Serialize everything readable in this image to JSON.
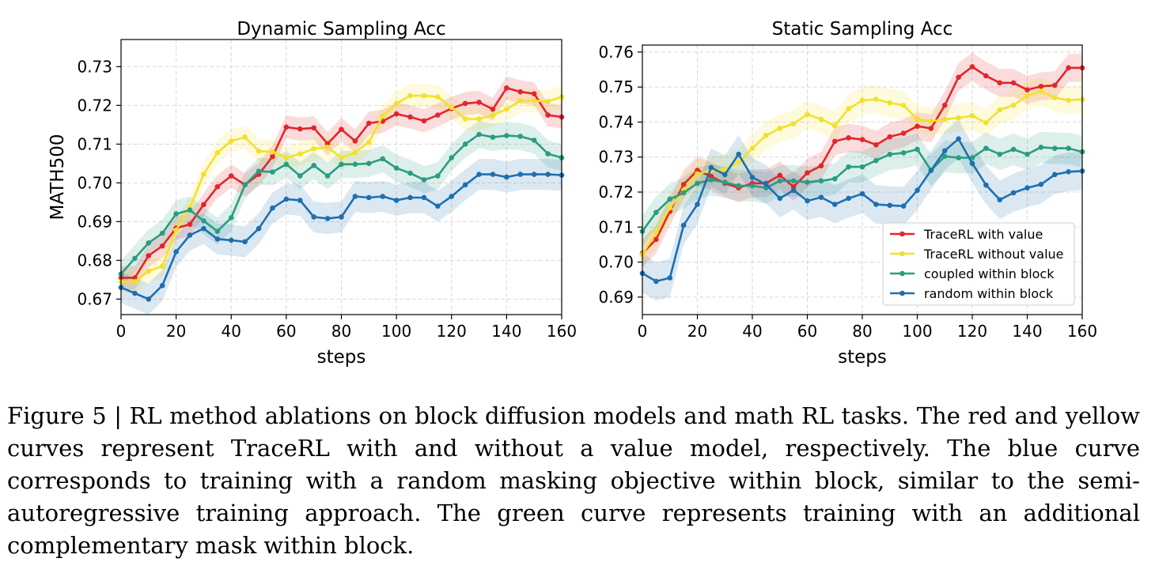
{
  "chart_data": [
    {
      "type": "line",
      "title": "Dynamic Sampling Acc",
      "xlabel": "steps",
      "ylabel": "MATH500",
      "xlim": [
        0,
        160
      ],
      "ylim": [
        0.666,
        0.737
      ],
      "xticks": [
        0,
        20,
        40,
        60,
        80,
        100,
        120,
        140,
        160
      ],
      "yticks": [
        0.67,
        0.68,
        0.69,
        0.7,
        0.71,
        0.72,
        0.73
      ],
      "ytick_labels": [
        "0.67",
        "0.68",
        "0.69",
        "0.70",
        "0.71",
        "0.72",
        "0.73"
      ],
      "grid": true,
      "x": [
        0,
        5,
        10,
        15,
        20,
        25,
        30,
        35,
        40,
        45,
        50,
        55,
        60,
        65,
        70,
        75,
        80,
        85,
        90,
        95,
        100,
        105,
        110,
        115,
        120,
        125,
        130,
        135,
        140,
        145,
        150,
        155,
        160
      ],
      "series": [
        {
          "name": "TraceRL with value",
          "color": "#e3262a",
          "band": 0.003,
          "values": [
            0.6755,
            0.6755,
            0.6812,
            0.6837,
            0.6883,
            0.6893,
            0.6944,
            0.699,
            0.7018,
            0.6995,
            0.7022,
            0.7068,
            0.7144,
            0.7139,
            0.7142,
            0.7101,
            0.7138,
            0.7108,
            0.7154,
            0.7159,
            0.7178,
            0.717,
            0.716,
            0.7175,
            0.7192,
            0.7205,
            0.7208,
            0.719,
            0.7245,
            0.7235,
            0.723,
            0.7175,
            0.717
          ]
        },
        {
          "name": "TraceRL without value",
          "color": "#f2e12c",
          "band": 0.003,
          "values": [
            0.6745,
            0.6745,
            0.6772,
            0.6785,
            0.6878,
            0.6935,
            0.7022,
            0.7078,
            0.7108,
            0.7118,
            0.7082,
            0.708,
            0.7065,
            0.7075,
            0.7088,
            0.7092,
            0.7065,
            0.7078,
            0.7105,
            0.7172,
            0.7205,
            0.7225,
            0.7225,
            0.7222,
            0.7195,
            0.7165,
            0.7165,
            0.7175,
            0.719,
            0.7212,
            0.7212,
            0.721,
            0.7222
          ]
        },
        {
          "name": "coupled within block",
          "color": "#2a9d80",
          "band": 0.0035,
          "values": [
            0.6765,
            0.6805,
            0.6845,
            0.687,
            0.692,
            0.693,
            0.6902,
            0.6875,
            0.691,
            0.6995,
            0.703,
            0.7028,
            0.7048,
            0.7018,
            0.7045,
            0.7018,
            0.7048,
            0.7048,
            0.705,
            0.7062,
            0.7038,
            0.7025,
            0.7008,
            0.7018,
            0.7065,
            0.71,
            0.7125,
            0.7118,
            0.7122,
            0.712,
            0.711,
            0.7075,
            0.7065
          ]
        },
        {
          "name": "random within block",
          "color": "#1e6fb0",
          "band": 0.004,
          "values": [
            0.673,
            0.6715,
            0.67,
            0.6735,
            0.6822,
            0.6865,
            0.6882,
            0.6855,
            0.6852,
            0.6848,
            0.6882,
            0.6935,
            0.6958,
            0.6955,
            0.6912,
            0.6908,
            0.6912,
            0.6965,
            0.6962,
            0.6965,
            0.6955,
            0.6962,
            0.6962,
            0.694,
            0.6965,
            0.6995,
            0.7022,
            0.7022,
            0.7015,
            0.7022,
            0.7022,
            0.7022,
            0.702
          ]
        }
      ]
    },
    {
      "type": "line",
      "title": "Static Sampling Acc",
      "xlabel": "steps",
      "ylabel": "",
      "xlim": [
        0,
        160
      ],
      "ylim": [
        0.685,
        0.762
      ],
      "xticks": [
        0,
        20,
        40,
        60,
        80,
        100,
        120,
        140,
        160
      ],
      "yticks": [
        0.69,
        0.7,
        0.71,
        0.72,
        0.73,
        0.74,
        0.75,
        0.76
      ],
      "ytick_labels": [
        "0.69",
        "0.70",
        "0.71",
        "0.72",
        "0.73",
        "0.74",
        "0.75",
        "0.76"
      ],
      "grid": true,
      "legend_position": "lower-right",
      "x": [
        0,
        5,
        10,
        15,
        20,
        25,
        30,
        35,
        40,
        45,
        50,
        55,
        60,
        65,
        70,
        75,
        80,
        85,
        90,
        95,
        100,
        105,
        110,
        115,
        120,
        125,
        130,
        135,
        140,
        145,
        150,
        155,
        160
      ],
      "series": [
        {
          "name": "TraceRL with value",
          "color": "#e3262a",
          "band": 0.004,
          "values": [
            0.7025,
            0.7065,
            0.7145,
            0.7222,
            0.7262,
            0.7245,
            0.7225,
            0.7212,
            0.7225,
            0.7225,
            0.7248,
            0.7215,
            0.7255,
            0.7275,
            0.7345,
            0.7355,
            0.735,
            0.7335,
            0.7358,
            0.7368,
            0.7388,
            0.7382,
            0.7448,
            0.7528,
            0.7558,
            0.7532,
            0.7512,
            0.7512,
            0.7492,
            0.7502,
            0.7505,
            0.7555,
            0.7555
          ]
        },
        {
          "name": "TraceRL without value",
          "color": "#f2e12c",
          "band": 0.004,
          "values": [
            0.7022,
            0.7085,
            0.7155,
            0.7205,
            0.7252,
            0.7262,
            0.7265,
            0.7285,
            0.7325,
            0.7362,
            0.7382,
            0.7395,
            0.7422,
            0.7408,
            0.739,
            0.7438,
            0.7462,
            0.7465,
            0.7455,
            0.7448,
            0.7408,
            0.7402,
            0.7408,
            0.7412,
            0.7418,
            0.7398,
            0.7435,
            0.7448,
            0.7475,
            0.7488,
            0.747,
            0.7462,
            0.7465
          ]
        },
        {
          "name": "coupled within block",
          "color": "#2a9d80",
          "band": 0.0045,
          "values": [
            0.7088,
            0.7142,
            0.718,
            0.7198,
            0.7225,
            0.7235,
            0.7228,
            0.7218,
            0.7218,
            0.7212,
            0.7232,
            0.7232,
            0.7228,
            0.7232,
            0.7238,
            0.7272,
            0.7272,
            0.729,
            0.7308,
            0.7312,
            0.7322,
            0.7262,
            0.7302,
            0.7298,
            0.7298,
            0.7325,
            0.7308,
            0.7322,
            0.7308,
            0.7328,
            0.7325,
            0.7325,
            0.7315
          ]
        },
        {
          "name": "random within block",
          "color": "#1e6fb0",
          "band": 0.0055,
          "values": [
            0.6968,
            0.6945,
            0.6955,
            0.7105,
            0.7165,
            0.727,
            0.725,
            0.7308,
            0.7242,
            0.7222,
            0.7182,
            0.7205,
            0.7175,
            0.7185,
            0.7165,
            0.7182,
            0.7195,
            0.7165,
            0.7162,
            0.716,
            0.7205,
            0.7262,
            0.7318,
            0.7352,
            0.7282,
            0.722,
            0.7178,
            0.7198,
            0.7212,
            0.7222,
            0.725,
            0.7258,
            0.726
          ]
        }
      ]
    }
  ],
  "legend": [
    "TraceRL with value",
    "TraceRL without value",
    "coupled within block",
    "random within block"
  ],
  "caption": "Figure 5 | RL method ablations on block diffusion models and math RL tasks. The red and yellow curves represent TraceRL with and without a value model, respectively. The blue curve corresponds to training with a random masking objective within block, similar to the semi-autoregressive training approach. The green curve represents training with an additional complementary mask within block."
}
